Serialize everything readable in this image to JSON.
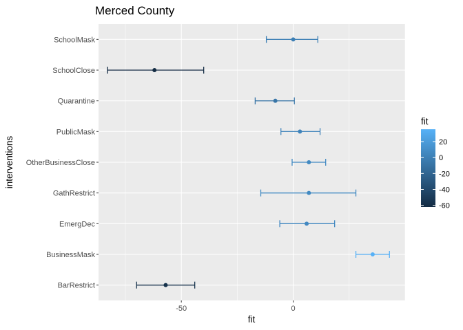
{
  "chart_data": {
    "type": "errorbar",
    "title": "Merced County",
    "xlabel": "fit",
    "ylabel": "interventions",
    "xlim": [
      -87,
      50
    ],
    "xticks": [
      -50,
      0
    ],
    "grid": true,
    "categories": [
      "SchoolMask",
      "SchoolClose",
      "Quarantine",
      "PublicMask",
      "OtherBusinessClose",
      "GathRestrict",
      "EmergDec",
      "BusinessMask",
      "BarRestrict"
    ],
    "points": [
      {
        "intervention": "SchoolMask",
        "fit": 0,
        "lower": -12,
        "upper": 11
      },
      {
        "intervention": "SchoolClose",
        "fit": -62,
        "lower": -83,
        "upper": -40
      },
      {
        "intervention": "Quarantine",
        "fit": -8,
        "lower": -17,
        "upper": 0.5
      },
      {
        "intervention": "PublicMask",
        "fit": 3,
        "lower": -5.5,
        "upper": 12
      },
      {
        "intervention": "OtherBusinessClose",
        "fit": 7,
        "lower": -0.5,
        "upper": 14.5
      },
      {
        "intervention": "GathRestrict",
        "fit": 7,
        "lower": -14.5,
        "upper": 28
      },
      {
        "intervention": "EmergDec",
        "fit": 6,
        "lower": -6,
        "upper": 18.5
      },
      {
        "intervention": "BusinessMask",
        "fit": 35.5,
        "lower": 28,
        "upper": 43
      },
      {
        "intervention": "BarRestrict",
        "fit": -57,
        "lower": -70,
        "upper": -44
      }
    ],
    "legend": {
      "title": "fit",
      "position": "right",
      "ticks": [
        20,
        0,
        -20,
        -40,
        -60
      ],
      "range": [
        -62,
        35.5
      ],
      "color_low": "#132B43",
      "color_high": "#56B1F7"
    },
    "panel_color": "#EBEBEB",
    "grid_color": "#FFFFFF"
  }
}
